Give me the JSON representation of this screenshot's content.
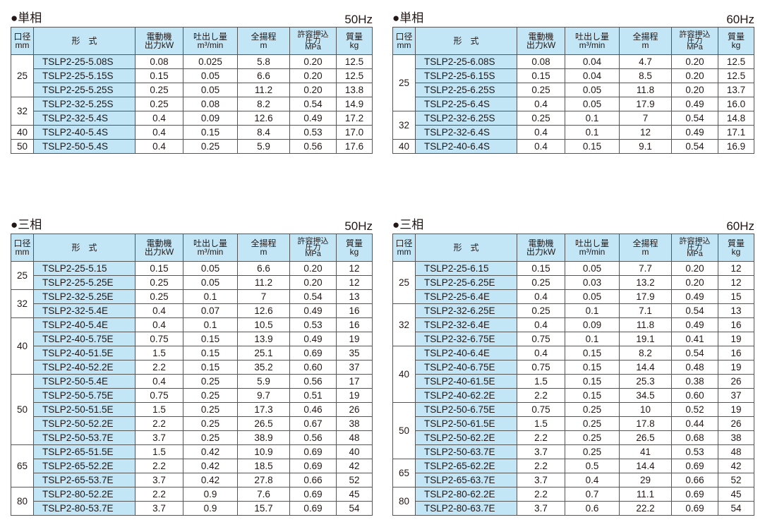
{
  "headers": [
    [
      "口径",
      "mm"
    ],
    [
      "形　式"
    ],
    [
      "電動機",
      "出力kW"
    ],
    [
      "吐出し量",
      "m³/min"
    ],
    [
      "全揚程",
      "m"
    ],
    [
      "許容押込",
      "圧力",
      "MPa"
    ],
    [
      "質量",
      "kg"
    ]
  ],
  "tables": [
    {
      "title": "●単相",
      "hz": "50Hz",
      "rows": [
        [
          "25",
          "TSLP2-25-5.08S",
          "0.08",
          "0.025",
          "5.8",
          "0.20",
          "12.5"
        ],
        [
          "25",
          "TSLP2-25-5.15S",
          "0.15",
          "0.05",
          "6.6",
          "0.20",
          "12.5"
        ],
        [
          "25",
          "TSLP2-25-5.25S",
          "0.25",
          "0.05",
          "11.2",
          "0.20",
          "13.8"
        ],
        [
          "32",
          "TSLP2-32-5.25S",
          "0.25",
          "0.08",
          "8.2",
          "0.54",
          "14.9"
        ],
        [
          "32",
          "TSLP2-32-5.4S",
          "0.4",
          "0.09",
          "12.6",
          "0.49",
          "17.2"
        ],
        [
          "40",
          "TSLP2-40-5.4S",
          "0.4",
          "0.15",
          "8.4",
          "0.53",
          "17.0"
        ],
        [
          "50",
          "TSLP2-50-5.4S",
          "0.4",
          "0.25",
          "5.9",
          "0.56",
          "17.6"
        ]
      ]
    },
    {
      "title": "●単相",
      "hz": "60Hz",
      "rows": [
        [
          "25",
          "TSLP2-25-6.08S",
          "0.08",
          "0.04",
          "4.7",
          "0.20",
          "12.5"
        ],
        [
          "25",
          "TSLP2-25-6.15S",
          "0.15",
          "0.04",
          "8.5",
          "0.20",
          "12.5"
        ],
        [
          "25",
          "TSLP2-25-6.25S",
          "0.25",
          "0.05",
          "11.8",
          "0.20",
          "13.7"
        ],
        [
          "25",
          "TSLP2-25-6.4S",
          "0.4",
          "0.05",
          "17.9",
          "0.49",
          "16.0"
        ],
        [
          "32",
          "TSLP2-32-6.25S",
          "0.25",
          "0.1",
          "7",
          "0.54",
          "14.8"
        ],
        [
          "32",
          "TSLP2-32-6.4S",
          "0.4",
          "0.1",
          "12",
          "0.49",
          "17.1"
        ],
        [
          "40",
          "TSLP2-40-6.4S",
          "0.4",
          "0.15",
          "9.1",
          "0.54",
          "16.9"
        ]
      ]
    },
    {
      "title": "●三相",
      "hz": "50Hz",
      "rows": [
        [
          "25",
          "TSLP2-25-5.15",
          "0.15",
          "0.05",
          "6.6",
          "0.20",
          "12"
        ],
        [
          "25",
          "TSLP2-25-5.25E",
          "0.25",
          "0.05",
          "11.2",
          "0.20",
          "12"
        ],
        [
          "32",
          "TSLP2-32-5.25E",
          "0.25",
          "0.1",
          "7",
          "0.54",
          "13"
        ],
        [
          "32",
          "TSLP2-32-5.4E",
          "0.4",
          "0.07",
          "12.6",
          "0.49",
          "16"
        ],
        [
          "40",
          "TSLP2-40-5.4E",
          "0.4",
          "0.1",
          "10.5",
          "0.53",
          "16"
        ],
        [
          "40",
          "TSLP2-40-5.75E",
          "0.75",
          "0.15",
          "13.9",
          "0.49",
          "19"
        ],
        [
          "40",
          "TSLP2-40-51.5E",
          "1.5",
          "0.15",
          "25.1",
          "0.69",
          "35"
        ],
        [
          "40",
          "TSLP2-40-52.2E",
          "2.2",
          "0.15",
          "35.2",
          "0.60",
          "37"
        ],
        [
          "50",
          "TSLP2-50-5.4E",
          "0.4",
          "0.25",
          "5.9",
          "0.56",
          "17"
        ],
        [
          "50",
          "TSLP2-50-5.75E",
          "0.75",
          "0.25",
          "9.7",
          "0.51",
          "19"
        ],
        [
          "50",
          "TSLP2-50-51.5E",
          "1.5",
          "0.25",
          "17.3",
          "0.46",
          "26"
        ],
        [
          "50",
          "TSLP2-50-52.2E",
          "2.2",
          "0.25",
          "26.5",
          "0.67",
          "38"
        ],
        [
          "50",
          "TSLP2-50-53.7E",
          "3.7",
          "0.25",
          "38.9",
          "0.56",
          "48"
        ],
        [
          "65",
          "TSLP2-65-51.5E",
          "1.5",
          "0.42",
          "10.9",
          "0.69",
          "40"
        ],
        [
          "65",
          "TSLP2-65-52.2E",
          "2.2",
          "0.42",
          "18.5",
          "0.69",
          "42"
        ],
        [
          "65",
          "TSLP2-65-53.7E",
          "3.7",
          "0.42",
          "27.8",
          "0.66",
          "52"
        ],
        [
          "80",
          "TSLP2-80-52.2E",
          "2.2",
          "0.9",
          "7.6",
          "0.69",
          "45"
        ],
        [
          "80",
          "TSLP2-80-53.7E",
          "3.7",
          "0.9",
          "15.7",
          "0.69",
          "54"
        ]
      ]
    },
    {
      "title": "●三相",
      "hz": "60Hz",
      "rows": [
        [
          "25",
          "TSLP2-25-6.15",
          "0.15",
          "0.05",
          "7.7",
          "0.20",
          "12"
        ],
        [
          "25",
          "TSLP2-25-6.25E",
          "0.25",
          "0.03",
          "13.2",
          "0.20",
          "12"
        ],
        [
          "25",
          "TSLP2-25-6.4E",
          "0.4",
          "0.05",
          "17.9",
          "0.49",
          "15"
        ],
        [
          "32",
          "TSLP2-32-6.25E",
          "0.25",
          "0.1",
          "7.1",
          "0.54",
          "13"
        ],
        [
          "32",
          "TSLP2-32-6.4E",
          "0.4",
          "0.09",
          "11.8",
          "0.49",
          "16"
        ],
        [
          "32",
          "TSLP2-32-6.75E",
          "0.75",
          "0.1",
          "19.1",
          "0.41",
          "19"
        ],
        [
          "40",
          "TSLP2-40-6.4E",
          "0.4",
          "0.15",
          "8.2",
          "0.54",
          "16"
        ],
        [
          "40",
          "TSLP2-40-6.75E",
          "0.75",
          "0.15",
          "14.4",
          "0.48",
          "19"
        ],
        [
          "40",
          "TSLP2-40-61.5E",
          "1.5",
          "0.15",
          "25.3",
          "0.38",
          "26"
        ],
        [
          "40",
          "TSLP2-40-62.2E",
          "2.2",
          "0.15",
          "34.5",
          "0.60",
          "37"
        ],
        [
          "50",
          "TSLP2-50-6.75E",
          "0.75",
          "0.25",
          "10",
          "0.52",
          "19"
        ],
        [
          "50",
          "TSLP2-50-61.5E",
          "1.5",
          "0.25",
          "17.8",
          "0.44",
          "26"
        ],
        [
          "50",
          "TSLP2-50-62.2E",
          "2.2",
          "0.25",
          "26.5",
          "0.68",
          "38"
        ],
        [
          "50",
          "TSLP2-50-63.7E",
          "3.7",
          "0.25",
          "41",
          "0.53",
          "48"
        ],
        [
          "65",
          "TSLP2-65-62.2E",
          "2.2",
          "0.5",
          "14.4",
          "0.69",
          "42"
        ],
        [
          "65",
          "TSLP2-65-63.7E",
          "3.7",
          "0.4",
          "29",
          "0.66",
          "52"
        ],
        [
          "80",
          "TSLP2-80-62.2E",
          "2.2",
          "0.7",
          "11.1",
          "0.69",
          "45"
        ],
        [
          "80",
          "TSLP2-80-63.7E",
          "3.7",
          "0.6",
          "22.2",
          "0.69",
          "54"
        ]
      ]
    }
  ],
  "colors": {
    "header_bg": "#c3e6f7",
    "model_bg": "#c3e6f7",
    "border": "#555555"
  }
}
